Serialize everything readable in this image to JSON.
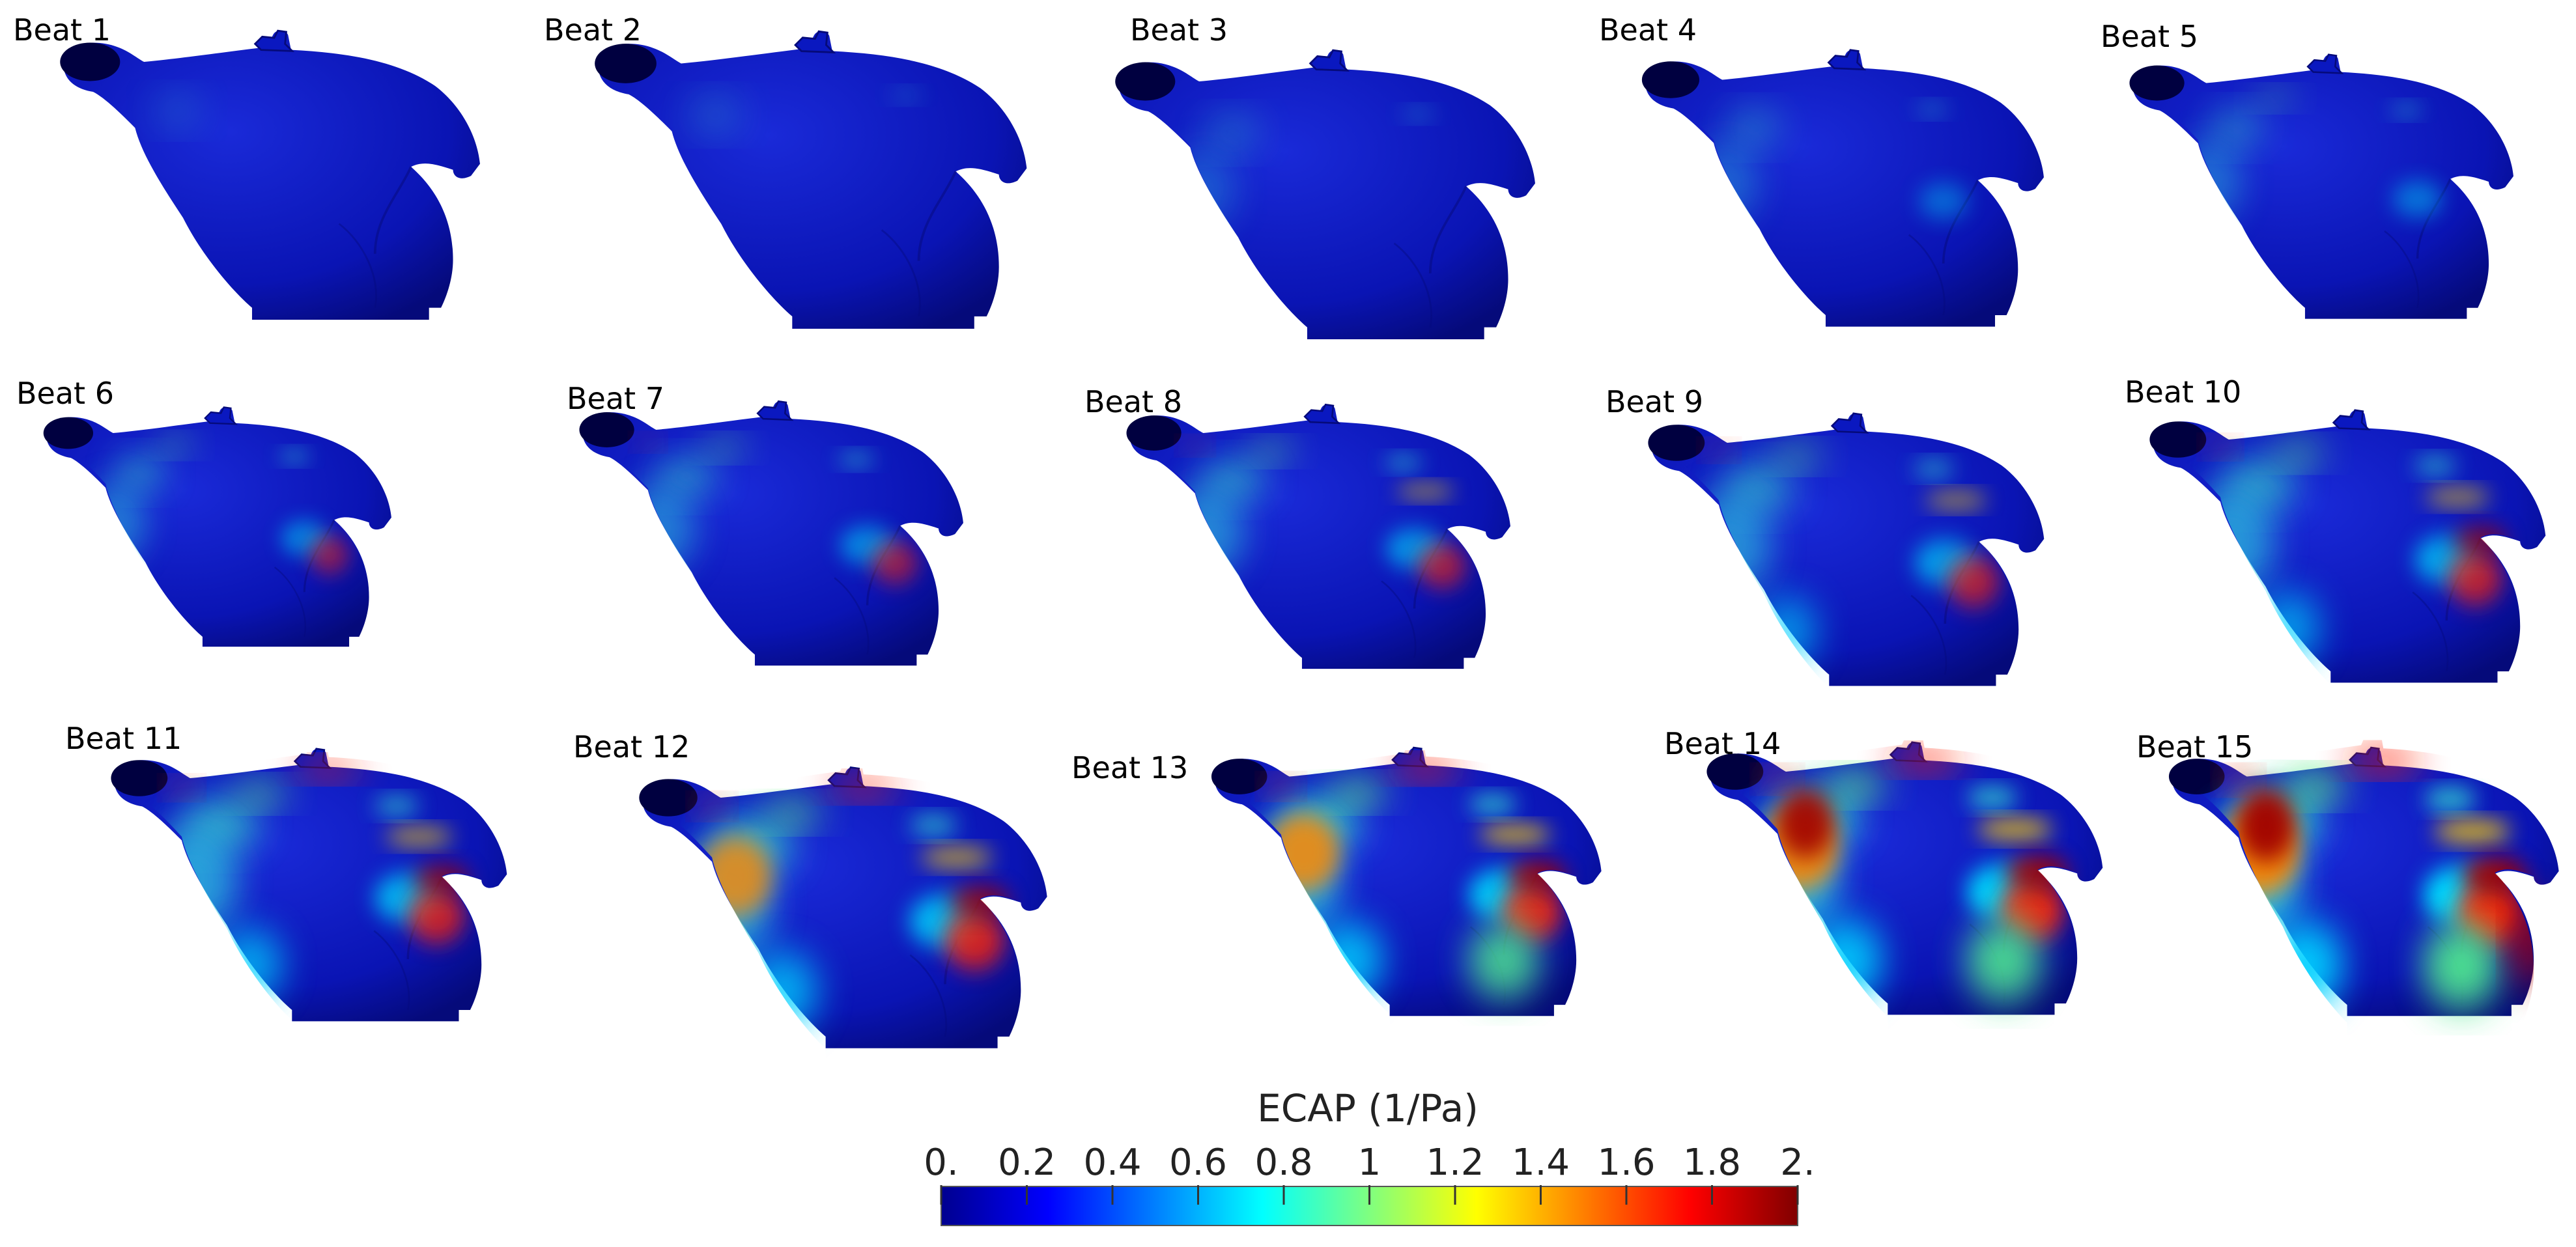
{
  "panels": [
    {
      "label": "Beat 1"
    },
    {
      "label": "Beat 2"
    },
    {
      "label": "Beat 3"
    },
    {
      "label": "Beat 4"
    },
    {
      "label": "Beat 5"
    },
    {
      "label": "Beat 6"
    },
    {
      "label": "Beat 7"
    },
    {
      "label": "Beat 8"
    },
    {
      "label": "Beat 9"
    },
    {
      "label": "Beat 10"
    },
    {
      "label": "Beat 11"
    },
    {
      "label": "Beat 12"
    },
    {
      "label": "Beat 13"
    },
    {
      "label": "Beat 14"
    },
    {
      "label": "Beat 15"
    }
  ],
  "colorbar": {
    "title": "ECAP (1/Pa)",
    "min": 0,
    "max": 2,
    "ticks": [
      {
        "value": 0,
        "label": "0."
      },
      {
        "value": 0.2,
        "label": "0.2"
      },
      {
        "value": 0.4,
        "label": "0.4"
      },
      {
        "value": 0.6,
        "label": "0.6"
      },
      {
        "value": 0.8,
        "label": "0.8"
      },
      {
        "value": 1,
        "label": "1"
      },
      {
        "value": 1.2,
        "label": "1.2"
      },
      {
        "value": 1.4,
        "label": "1.4"
      },
      {
        "value": 1.6,
        "label": "1.6"
      },
      {
        "value": 1.8,
        "label": "1.8"
      },
      {
        "value": 2,
        "label": "2."
      }
    ],
    "colormap": [
      "#00008f",
      "#0000ff",
      "#00ffff",
      "#ffff00",
      "#ff0000",
      "#800000"
    ]
  }
}
